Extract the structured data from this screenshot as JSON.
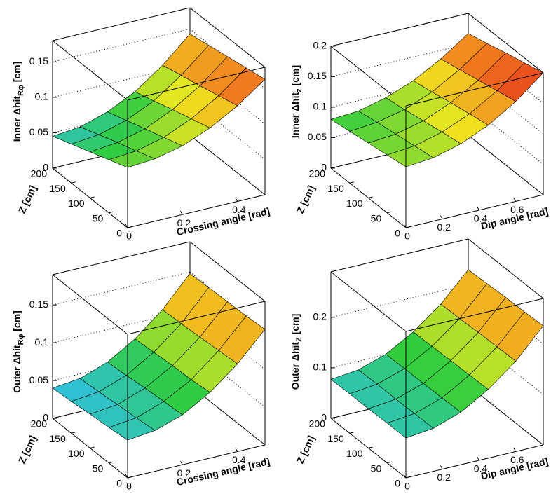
{
  "chart_data": [
    {
      "type": "surface",
      "ylabel": [
        "Inner Δhit",
        "Rφ",
        " [cm]"
      ],
      "xlabel": "Crossing angle [rad]",
      "zlabel": "Z [cm]",
      "x": [
        0,
        0.1,
        0.2,
        0.3,
        0.4,
        0.5
      ],
      "z": [
        0,
        50,
        100,
        150,
        200
      ],
      "values": [
        [
          0.085,
          0.088,
          0.097,
          0.113,
          0.135,
          0.163
        ],
        [
          0.075,
          0.078,
          0.088,
          0.105,
          0.128,
          0.158
        ],
        [
          0.065,
          0.069,
          0.079,
          0.097,
          0.121,
          0.153
        ],
        [
          0.055,
          0.059,
          0.07,
          0.088,
          0.115,
          0.148
        ],
        [
          0.045,
          0.049,
          0.061,
          0.08,
          0.108,
          0.143
        ]
      ],
      "xlim": [
        0,
        0.5
      ],
      "xticks": [
        0,
        0.2,
        0.4
      ],
      "zlim": [
        0,
        200
      ],
      "zticks": [
        0,
        50,
        100,
        150,
        200
      ],
      "ylim": [
        0,
        0.18
      ],
      "yticks": [
        0,
        0.05,
        0.1,
        0.15
      ],
      "palette": [
        "#3050e0",
        "#30c0e8",
        "#30cc40",
        "#f0e820",
        "#f08020",
        "#e01818"
      ]
    },
    {
      "type": "surface",
      "ylabel": [
        "Inner Δhit",
        "z",
        " [cm]"
      ],
      "xlabel": "Dip angle [rad]",
      "zlabel": "Z [cm]",
      "x": [
        0,
        0.15,
        0.3,
        0.45,
        0.6,
        0.75
      ],
      "z": [
        0,
        50,
        100,
        150,
        200
      ],
      "values": [
        [
          0.1,
          0.104,
          0.116,
          0.136,
          0.164,
          0.2
        ],
        [
          0.095,
          0.099,
          0.111,
          0.13,
          0.157,
          0.192
        ],
        [
          0.09,
          0.094,
          0.105,
          0.124,
          0.15,
          0.184
        ],
        [
          0.085,
          0.089,
          0.099,
          0.117,
          0.143,
          0.175
        ],
        [
          0.08,
          0.083,
          0.094,
          0.111,
          0.136,
          0.167
        ]
      ],
      "xlim": [
        0,
        0.75
      ],
      "xticks": [
        0,
        0.2,
        0.4,
        0.6
      ],
      "zlim": [
        0,
        200
      ],
      "zticks": [
        0,
        50,
        100,
        150,
        200
      ],
      "ylim": [
        0,
        0.2
      ],
      "yticks": [
        0,
        0.05,
        0.1,
        0.15,
        0.2
      ],
      "palette": [
        "#3050e0",
        "#30c0e8",
        "#30cc40",
        "#f0e820",
        "#f08020",
        "#e01818"
      ]
    },
    {
      "type": "surface",
      "ylabel": [
        "Outer Δhit",
        "Rφ",
        " [cm]"
      ],
      "xlabel": "Crossing angle [rad]",
      "zlabel": "Z [cm]",
      "x": [
        0,
        0.1,
        0.2,
        0.3,
        0.4,
        0.5
      ],
      "z": [
        0,
        50,
        100,
        150,
        200
      ],
      "values": [
        [
          0.05,
          0.054,
          0.066,
          0.087,
          0.116,
          0.153
        ],
        [
          0.047,
          0.051,
          0.064,
          0.084,
          0.114,
          0.151
        ],
        [
          0.045,
          0.049,
          0.062,
          0.083,
          0.112,
          0.15
        ],
        [
          0.042,
          0.046,
          0.059,
          0.081,
          0.11,
          0.149
        ],
        [
          0.04,
          0.044,
          0.057,
          0.079,
          0.109,
          0.148
        ]
      ],
      "xlim": [
        0,
        0.5
      ],
      "xticks": [
        0,
        0.2,
        0.4
      ],
      "zlim": [
        0,
        200
      ],
      "zticks": [
        0,
        50,
        100,
        150,
        200
      ],
      "ylim": [
        0,
        0.19
      ],
      "yticks": [
        0,
        0.05,
        0.1,
        0.15
      ],
      "palette": [
        "#3050e0",
        "#30c0e8",
        "#30cc40",
        "#f0e820",
        "#f08020",
        "#e01818"
      ]
    },
    {
      "type": "surface",
      "ylabel": [
        "Outer Δhit",
        "Z",
        " [cm]"
      ],
      "xlabel": "Dip angle [rad]",
      "zlabel": "Z [cm]",
      "x": [
        0,
        0.15,
        0.3,
        0.45,
        0.6,
        0.75
      ],
      "z": [
        0,
        50,
        100,
        150,
        200
      ],
      "values": [
        [
          0.079,
          0.085,
          0.104,
          0.136,
          0.179,
          0.236
        ],
        [
          0.079,
          0.085,
          0.103,
          0.135,
          0.178,
          0.234
        ],
        [
          0.078,
          0.084,
          0.102,
          0.134,
          0.177,
          0.233
        ],
        [
          0.078,
          0.084,
          0.102,
          0.133,
          0.175,
          0.231
        ],
        [
          0.077,
          0.083,
          0.101,
          0.132,
          0.174,
          0.229
        ]
      ],
      "xlim": [
        0,
        0.75
      ],
      "xticks": [
        0,
        0.2,
        0.4,
        0.6
      ],
      "zlim": [
        0,
        200
      ],
      "zticks": [
        0,
        50,
        100,
        150,
        200
      ],
      "ylim": [
        0,
        0.29
      ],
      "yticks": [
        0,
        0.1,
        0.2
      ],
      "palette": [
        "#3050e0",
        "#30c0e8",
        "#30cc40",
        "#f0e820",
        "#f08020",
        "#e01818"
      ]
    }
  ]
}
